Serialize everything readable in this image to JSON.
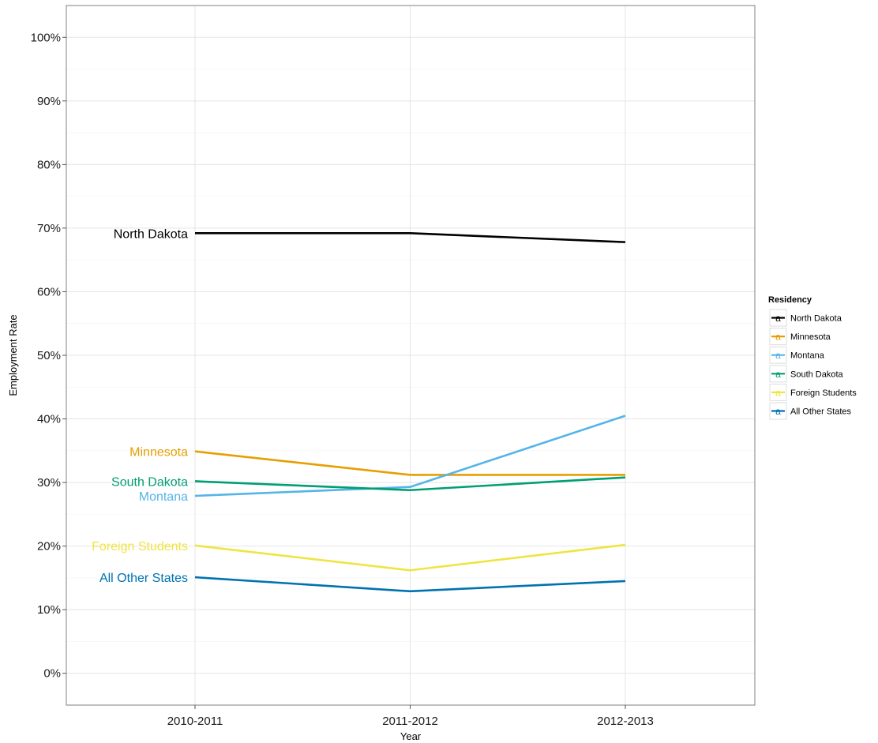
{
  "chart_data": {
    "type": "line",
    "xlabel": "Year",
    "ylabel": "Employment Rate",
    "categories": [
      "2010-2011",
      "2011-2012",
      "2012-2013"
    ],
    "ylim": [
      -5,
      105
    ],
    "yticks": [
      0,
      10,
      20,
      30,
      40,
      50,
      60,
      70,
      80,
      90,
      100
    ],
    "ytick_labels": [
      "0%",
      "10%",
      "20%",
      "30%",
      "40%",
      "50%",
      "60%",
      "70%",
      "80%",
      "90%",
      "100%"
    ],
    "grid": true,
    "legend": {
      "title": "Residency",
      "position": "right",
      "glyph": "a"
    },
    "series": [
      {
        "name": "North Dakota",
        "color": "#000000",
        "values": [
          69.2,
          69.2,
          67.8
        ]
      },
      {
        "name": "Minnesota",
        "color": "#E69F00",
        "values": [
          34.9,
          31.2,
          31.2
        ]
      },
      {
        "name": "Montana",
        "color": "#56B4E9",
        "values": [
          27.9,
          29.3,
          40.5
        ]
      },
      {
        "name": "South Dakota",
        "color": "#009E73",
        "values": [
          30.2,
          28.8,
          30.8
        ]
      },
      {
        "name": "Foreign Students",
        "color": "#F0E442",
        "values": [
          20.1,
          16.2,
          20.2
        ]
      },
      {
        "name": "All Other States",
        "color": "#0072B2",
        "values": [
          15.1,
          12.9,
          14.5
        ]
      }
    ]
  }
}
